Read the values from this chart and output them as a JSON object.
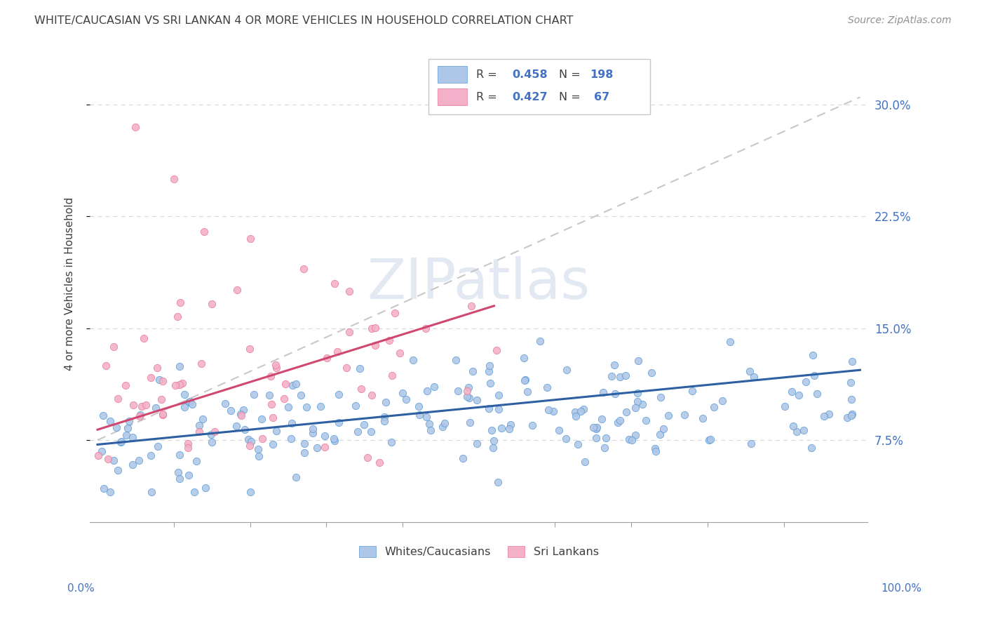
{
  "title": "WHITE/CAUCASIAN VS SRI LANKAN 4 OR MORE VEHICLES IN HOUSEHOLD CORRELATION CHART",
  "source": "Source: ZipAtlas.com",
  "ylabel": "4 or more Vehicles in Household",
  "ytick_vals": [
    0.075,
    0.15,
    0.225,
    0.3
  ],
  "ytick_labels": [
    "7.5%",
    "15.0%",
    "22.5%",
    "30.0%"
  ],
  "blue_scatter_color": "#aec6e8",
  "blue_edge_color": "#5b9bd5",
  "pink_scatter_color": "#f4b0c8",
  "pink_edge_color": "#e87898",
  "blue_line_color": "#2e5fa3",
  "pink_line_color": "#d04870",
  "dash_line_color": "#c8c8c8",
  "watermark_color": "#ccd8ea",
  "text_color": "#404040",
  "axis_label_color": "#4472c4",
  "grid_color": "#d8d8d8",
  "R_blue": 0.458,
  "N_blue": 198,
  "R_pink": 0.427,
  "N_pink": 67,
  "blue_line_x0": 0.0,
  "blue_line_y0": 0.072,
  "blue_line_x1": 1.0,
  "blue_line_y1": 0.122,
  "pink_line_x0": 0.0,
  "pink_line_y0": 0.082,
  "pink_line_x1": 0.52,
  "pink_line_y1": 0.165,
  "dash_line_x0": 0.0,
  "dash_line_y0": 0.075,
  "dash_line_x1": 1.0,
  "dash_line_y1": 0.305,
  "xlim_min": -0.01,
  "xlim_max": 1.01,
  "ylim_min": 0.02,
  "ylim_max": 0.34
}
